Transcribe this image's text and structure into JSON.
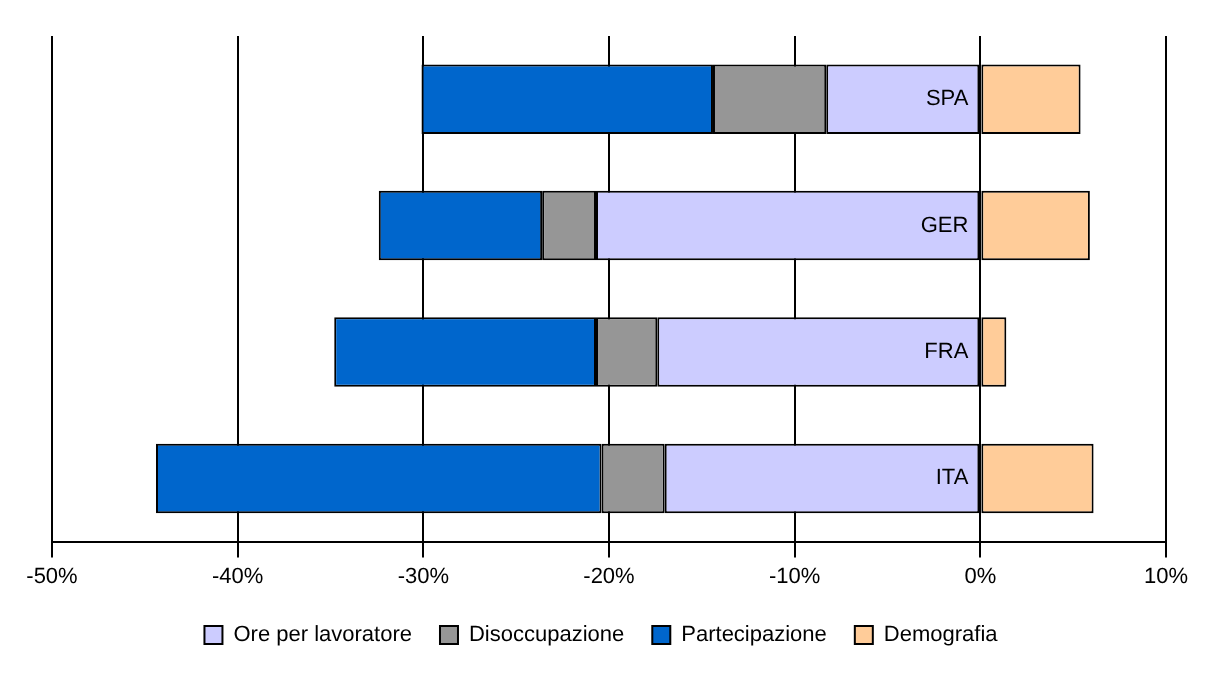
{
  "chart_data": {
    "type": "bar",
    "orientation": "horizontal",
    "stacked": true,
    "categories": [
      "SPA",
      "GER",
      "FRA",
      "ITA"
    ],
    "series": [
      {
        "name": "Ore per lavoratore",
        "color": "#ccccff",
        "values": [
          -8.3,
          -20.7,
          -17.4,
          -17.0
        ]
      },
      {
        "name": "Disoccupazione",
        "color": "#969696",
        "values": [
          -6.1,
          -2.9,
          -3.3,
          -3.4
        ]
      },
      {
        "name": "Partecipazione",
        "color": "#0066cc",
        "values": [
          -15.7,
          -8.8,
          -14.1,
          -24.0
        ]
      },
      {
        "name": "Demografia",
        "color": "#ffcc99",
        "values": [
          5.4,
          5.9,
          1.4,
          6.1
        ]
      }
    ],
    "xlim": [
      -50,
      10
    ],
    "xticks": [
      {
        "value": -50,
        "label": "-50%"
      },
      {
        "value": -40,
        "label": "-40%"
      },
      {
        "value": -30,
        "label": "-30%"
      },
      {
        "value": -20,
        "label": "-20%"
      },
      {
        "value": -10,
        "label": "-10%"
      },
      {
        "value": 0,
        "label": "0%"
      },
      {
        "value": 10,
        "label": "10%"
      }
    ],
    "grid": "x",
    "legend": "bottom"
  }
}
